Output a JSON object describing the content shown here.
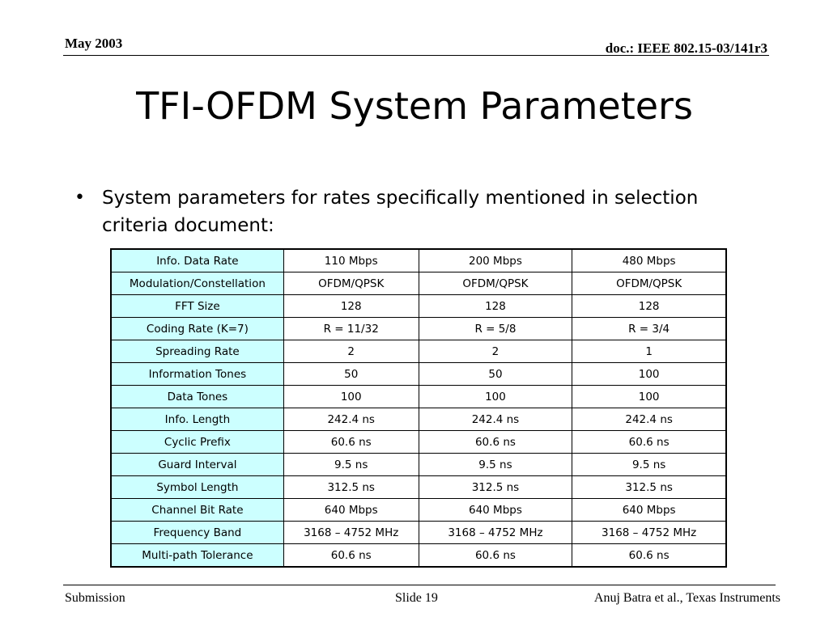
{
  "header": {
    "date": "May 2003",
    "doc_id": "doc.: IEEE 802.15-03/141r3"
  },
  "title": "TFI-OFDM System Parameters",
  "bullet": {
    "symbol": "•",
    "text": "System parameters for rates specifically mentioned in selection criteria document:"
  },
  "table": {
    "rows": [
      {
        "label": "Info. Data Rate",
        "values": [
          "110 Mbps",
          "200 Mbps",
          "480 Mbps"
        ]
      },
      {
        "label": "Modulation/Constellation",
        "values": [
          "OFDM/QPSK",
          "OFDM/QPSK",
          "OFDM/QPSK"
        ]
      },
      {
        "label": "FFT Size",
        "values": [
          "128",
          "128",
          "128"
        ]
      },
      {
        "label": "Coding Rate (K=7)",
        "values": [
          "R = 11/32",
          "R = 5/8",
          "R = 3/4"
        ]
      },
      {
        "label": "Spreading Rate",
        "values": [
          "2",
          "2",
          "1"
        ]
      },
      {
        "label": "Information Tones",
        "values": [
          "50",
          "50",
          "100"
        ]
      },
      {
        "label": "Data Tones",
        "values": [
          "100",
          "100",
          "100"
        ]
      },
      {
        "label": "Info. Length",
        "values": [
          "242.4 ns",
          "242.4 ns",
          "242.4 ns"
        ]
      },
      {
        "label": "Cyclic Prefix",
        "values": [
          "60.6 ns",
          "60.6 ns",
          "60.6 ns"
        ]
      },
      {
        "label": "Guard Interval",
        "values": [
          "9.5 ns",
          "9.5 ns",
          "9.5 ns"
        ]
      },
      {
        "label": "Symbol Length",
        "values": [
          "312.5 ns",
          "312.5 ns",
          "312.5 ns"
        ]
      },
      {
        "label": "Channel Bit Rate",
        "values": [
          "640 Mbps",
          "640 Mbps",
          "640 Mbps"
        ]
      },
      {
        "label": "Frequency Band",
        "values": [
          "3168 – 4752 MHz",
          "3168 – 4752 MHz",
          "3168 – 4752 MHz"
        ]
      },
      {
        "label": "Multi-path Tolerance",
        "values": [
          "60.6 ns",
          "60.6 ns",
          "60.6 ns"
        ]
      }
    ],
    "label_bg": "#ccffff"
  },
  "footer": {
    "left": "Submission",
    "center": "Slide 19",
    "right": "Anuj Batra et al., Texas Instruments"
  }
}
